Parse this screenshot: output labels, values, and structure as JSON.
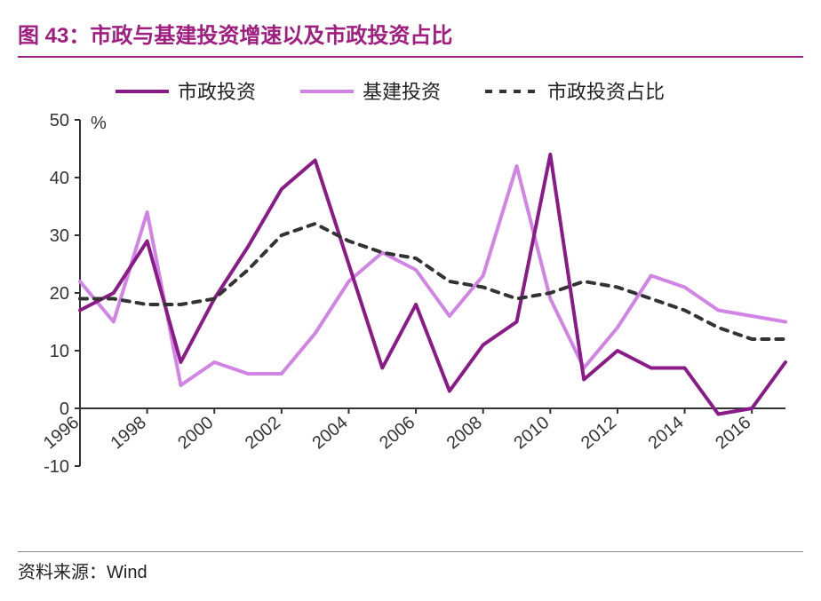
{
  "title": "图 43：市政与基建投资增速以及市政投资占比",
  "source_label": "资料来源：",
  "source_value": "Wind",
  "chart": {
    "type": "line",
    "y_unit": "%",
    "ylim": [
      -10,
      50
    ],
    "ytick_step": 10,
    "yticks": [
      -10,
      0,
      10,
      20,
      30,
      40,
      50
    ],
    "x_years": [
      1996,
      1997,
      1998,
      1999,
      2000,
      2001,
      2002,
      2003,
      2004,
      2005,
      2006,
      2007,
      2008,
      2009,
      2010,
      2011,
      2012,
      2013,
      2014,
      2015,
      2016,
      2017
    ],
    "x_tick_labels": [
      1996,
      1998,
      2000,
      2002,
      2004,
      2006,
      2008,
      2010,
      2012,
      2014,
      2016
    ],
    "background_color": "#ffffff",
    "axis_color": "#333333",
    "tick_fontsize": 20,
    "title_fontsize": 24,
    "legend": {
      "position": "top",
      "fontsize": 22,
      "items": [
        {
          "key": "series1",
          "label": "市政投资"
        },
        {
          "key": "series2",
          "label": "基建投资"
        },
        {
          "key": "series3",
          "label": "市政投资占比"
        }
      ]
    },
    "series1": {
      "label": "市政投资",
      "color": "#8b1a89",
      "line_width": 4,
      "dash": "none",
      "values": [
        17,
        20,
        29,
        8,
        19,
        28,
        38,
        43,
        25,
        7,
        18,
        3,
        11,
        15,
        44,
        5,
        10,
        7,
        7,
        -1,
        0,
        8
      ]
    },
    "series2": {
      "label": "基建投资",
      "color": "#d183e6",
      "line_width": 4,
      "dash": "none",
      "values": [
        22,
        15,
        34,
        4,
        8,
        6,
        6,
        13,
        22,
        27,
        24,
        16,
        23,
        42,
        19,
        7,
        14,
        23,
        21,
        17,
        16,
        15
      ]
    },
    "series3": {
      "label": "市政投资占比",
      "color": "#333333",
      "line_width": 4,
      "dash": "8,8",
      "values": [
        19,
        19,
        18,
        18,
        19,
        24,
        30,
        32,
        29,
        27,
        26,
        22,
        21,
        19,
        20,
        22,
        21,
        19,
        17,
        14,
        12,
        12
      ]
    }
  }
}
